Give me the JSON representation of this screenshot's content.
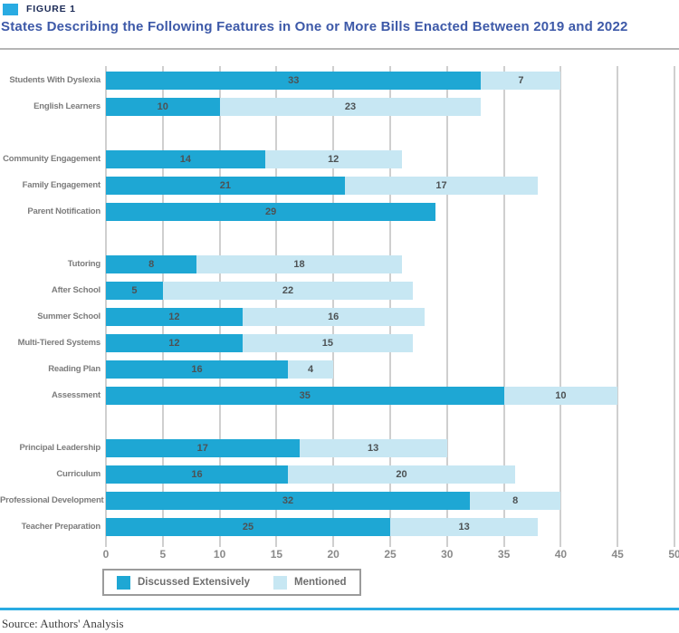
{
  "header": {
    "figure_label": "FIGURE 1",
    "title": "States Describing the Following Features in One or More Bills Enacted Between 2019 and 2022"
  },
  "colors": {
    "extensive": "#1EA7D4",
    "mentioned": "#C7E7F3",
    "accent": "#29ABE2",
    "gridline": "#CFCFCF",
    "value_label": "#4D5254",
    "category_label": "#7C7C7C",
    "tick_label": "#8A8A8A"
  },
  "chart_data": {
    "type": "bar",
    "orientation": "horizontal",
    "stacked": true,
    "title": "States Describing the Following Features in One or More Bills Enacted Between 2019 and 2022",
    "xlabel": "",
    "ylabel": "",
    "xlim": [
      0,
      50
    ],
    "xticks": [
      0,
      5,
      10,
      15,
      20,
      25,
      30,
      35,
      40,
      45,
      50
    ],
    "grid": "vertical",
    "series_names": [
      "Discussed Extensively",
      "Mentioned"
    ],
    "groups": [
      {
        "rows": [
          {
            "label": "Students With Dyslexia",
            "extensive": 33,
            "mentioned": 7
          },
          {
            "label": "English Learners",
            "extensive": 10,
            "mentioned": 23
          }
        ]
      },
      {
        "rows": [
          {
            "label": "Community Engagement",
            "extensive": 14,
            "mentioned": 12
          },
          {
            "label": "Family Engagement",
            "extensive": 21,
            "mentioned": 17
          },
          {
            "label": "Parent Notification",
            "extensive": 29,
            "mentioned": 0
          }
        ]
      },
      {
        "rows": [
          {
            "label": "Tutoring",
            "extensive": 8,
            "mentioned": 18
          },
          {
            "label": "After School",
            "extensive": 5,
            "mentioned": 22
          },
          {
            "label": "Summer School",
            "extensive": 12,
            "mentioned": 16
          },
          {
            "label": "Multi-Tiered Systems",
            "extensive": 12,
            "mentioned": 15
          },
          {
            "label": "Reading Plan",
            "extensive": 16,
            "mentioned": 4
          },
          {
            "label": "Assessment",
            "extensive": 35,
            "mentioned": 10
          }
        ]
      },
      {
        "rows": [
          {
            "label": "Principal Leadership",
            "extensive": 17,
            "mentioned": 13
          },
          {
            "label": "Curriculum",
            "extensive": 16,
            "mentioned": 20
          },
          {
            "label": "Professional Development",
            "extensive": 32,
            "mentioned": 8
          },
          {
            "label": "Teacher Preparation",
            "extensive": 25,
            "mentioned": 13
          }
        ]
      }
    ],
    "legend": [
      {
        "label": "Discussed Extensively",
        "color_key": "extensive"
      },
      {
        "label": "Mentioned",
        "color_key": "mentioned"
      }
    ],
    "legend_position": "bottom-left"
  },
  "source": {
    "text": "Source: Authors' Analysis"
  }
}
